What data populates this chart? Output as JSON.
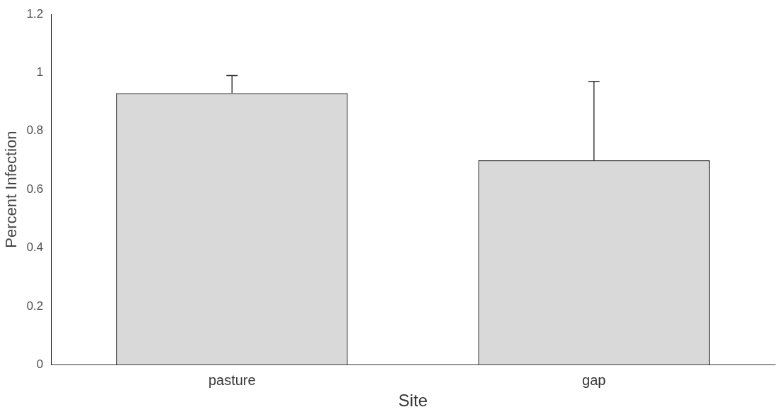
{
  "chart_data": {
    "type": "bar",
    "xlabel": "Site",
    "ylabel": "Percent Infection",
    "categories": [
      "pasture",
      "gap"
    ],
    "series": [
      {
        "color": "#d9d9d9",
        "values": [
          0.93,
          0.7
        ],
        "errors": [
          [
            0.93,
            0.99
          ],
          [
            0.7,
            0.97
          ]
        ]
      }
    ],
    "ylim": [
      0,
      1.2
    ],
    "yticks": [
      0,
      0.2,
      0.4,
      0.6,
      0.8,
      1,
      1.2
    ],
    "grid": false,
    "legend": false
  }
}
